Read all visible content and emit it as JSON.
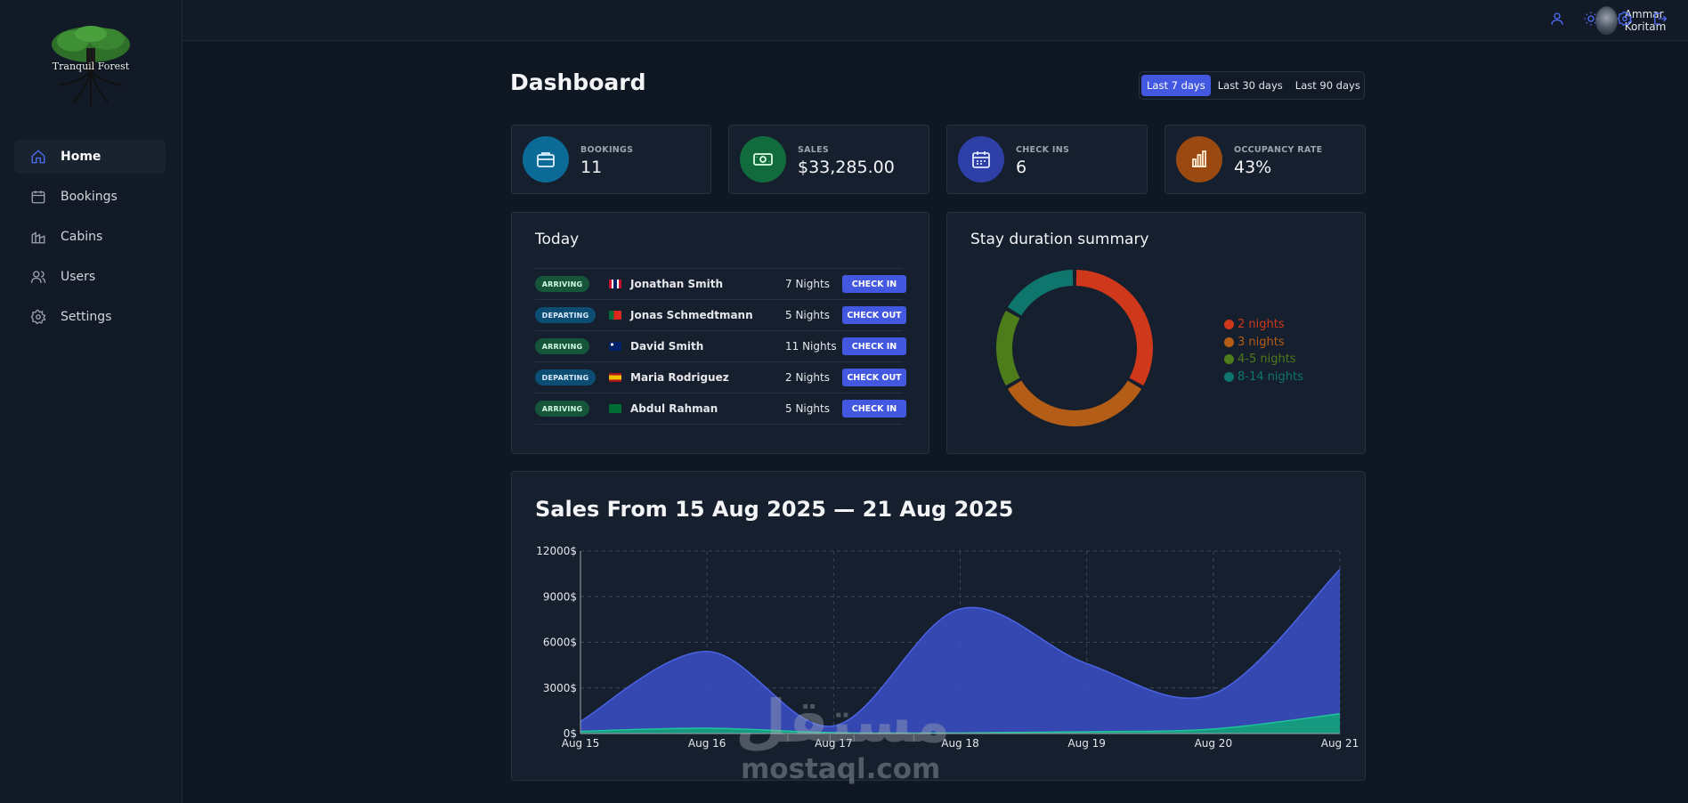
{
  "brand": {
    "name": "Tranquil Forest"
  },
  "sidebar": {
    "items": [
      {
        "label": "Home",
        "icon": "home-icon",
        "active": true
      },
      {
        "label": "Bookings",
        "icon": "calendar-icon",
        "active": false
      },
      {
        "label": "Cabins",
        "icon": "cabin-icon",
        "active": false
      },
      {
        "label": "Users",
        "icon": "users-icon",
        "active": false
      },
      {
        "label": "Settings",
        "icon": "gear-icon",
        "active": false
      }
    ]
  },
  "header": {
    "user_name": "Ammar Koritam",
    "icons": [
      "user-icon",
      "sun-icon",
      "gear-icon",
      "logout-icon"
    ],
    "accent": "#4f6df5"
  },
  "page": {
    "title": "Dashboard"
  },
  "filters": {
    "options": [
      "Last 7 days",
      "Last 30 days",
      "Last 90 days"
    ],
    "active": "Last 7 days"
  },
  "stats": [
    {
      "label": "BOOKINGS",
      "value": "11",
      "icon": "briefcase-icon",
      "color": "#0c6a97"
    },
    {
      "label": "SALES",
      "value": "$33,285.00",
      "icon": "banknote-icon",
      "color": "#126b3c"
    },
    {
      "label": "CHECK INS",
      "value": "6",
      "icon": "calendar-icon",
      "color": "#2f3fa8"
    },
    {
      "label": "OCCUPANCY RATE",
      "value": "43%",
      "icon": "bar-chart-icon",
      "color": "#9a4a10"
    }
  ],
  "today": {
    "title": "Today",
    "rows": [
      {
        "status": "ARRIVING",
        "guest": "Jonathan Smith",
        "nights": "7 Nights",
        "action": "CHECK IN",
        "flag": "flag-gb-icon"
      },
      {
        "status": "DEPARTING",
        "guest": "Jonas Schmedtmann",
        "nights": "5 Nights",
        "action": "CHECK OUT",
        "flag": "flag-pt-icon"
      },
      {
        "status": "ARRIVING",
        "guest": "David Smith",
        "nights": "11 Nights",
        "action": "CHECK IN",
        "flag": "flag-au-icon"
      },
      {
        "status": "DEPARTING",
        "guest": "Maria Rodriguez",
        "nights": "2 Nights",
        "action": "CHECK OUT",
        "flag": "flag-es-icon"
      },
      {
        "status": "ARRIVING",
        "guest": "Abdul Rahman",
        "nights": "5 Nights",
        "action": "CHECK IN",
        "flag": "flag-sa-icon"
      }
    ]
  },
  "chart_data": [
    {
      "type": "pie",
      "title": "Stay duration summary",
      "donut": true,
      "legend_position": "right",
      "categories": [
        "2 nights",
        "3 nights",
        "4-5 nights",
        "8-14 nights"
      ],
      "values": [
        4,
        4,
        2,
        2
      ],
      "colors": [
        "#d0381c",
        "#b45d17",
        "#4d7c1a",
        "#0f766e"
      ]
    },
    {
      "type": "area",
      "title": "Sales From 15 Aug 2025 — 21 Aug 2025",
      "xlabel": "",
      "ylabel": "",
      "categories": [
        "Aug 15",
        "Aug 16",
        "Aug 17",
        "Aug 18",
        "Aug 19",
        "Aug 20",
        "Aug 21"
      ],
      "yticks": [
        "0$",
        "3000$",
        "6000$",
        "9000$",
        "12000$"
      ],
      "ylim": [
        0,
        12000
      ],
      "grid": true,
      "series": [
        {
          "values": [
            800,
            5400,
            500,
            8200,
            4600,
            2600,
            10800
          ],
          "color": "#3b4fc8"
        },
        {
          "values": [
            150,
            350,
            60,
            40,
            120,
            300,
            1300
          ],
          "color": "#13a37a"
        }
      ]
    }
  ],
  "watermark": {
    "arabic": "مستقل",
    "latin": "mostaql.com"
  }
}
